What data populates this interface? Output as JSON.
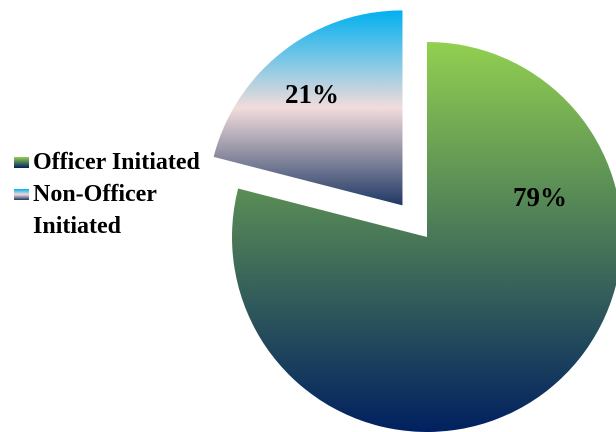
{
  "chart_data": {
    "type": "pie",
    "categories": [
      "Officer Initiated",
      "Non-Officer Initiated"
    ],
    "values": [
      79,
      21
    ],
    "value_labels": [
      "79%",
      "21%"
    ],
    "gradients": [
      [
        "#92d050",
        "#002060"
      ],
      [
        "#00b0f0",
        "#f2dcdb",
        "#1f3864"
      ]
    ],
    "explode": [
      false,
      true
    ],
    "legend": "left"
  }
}
